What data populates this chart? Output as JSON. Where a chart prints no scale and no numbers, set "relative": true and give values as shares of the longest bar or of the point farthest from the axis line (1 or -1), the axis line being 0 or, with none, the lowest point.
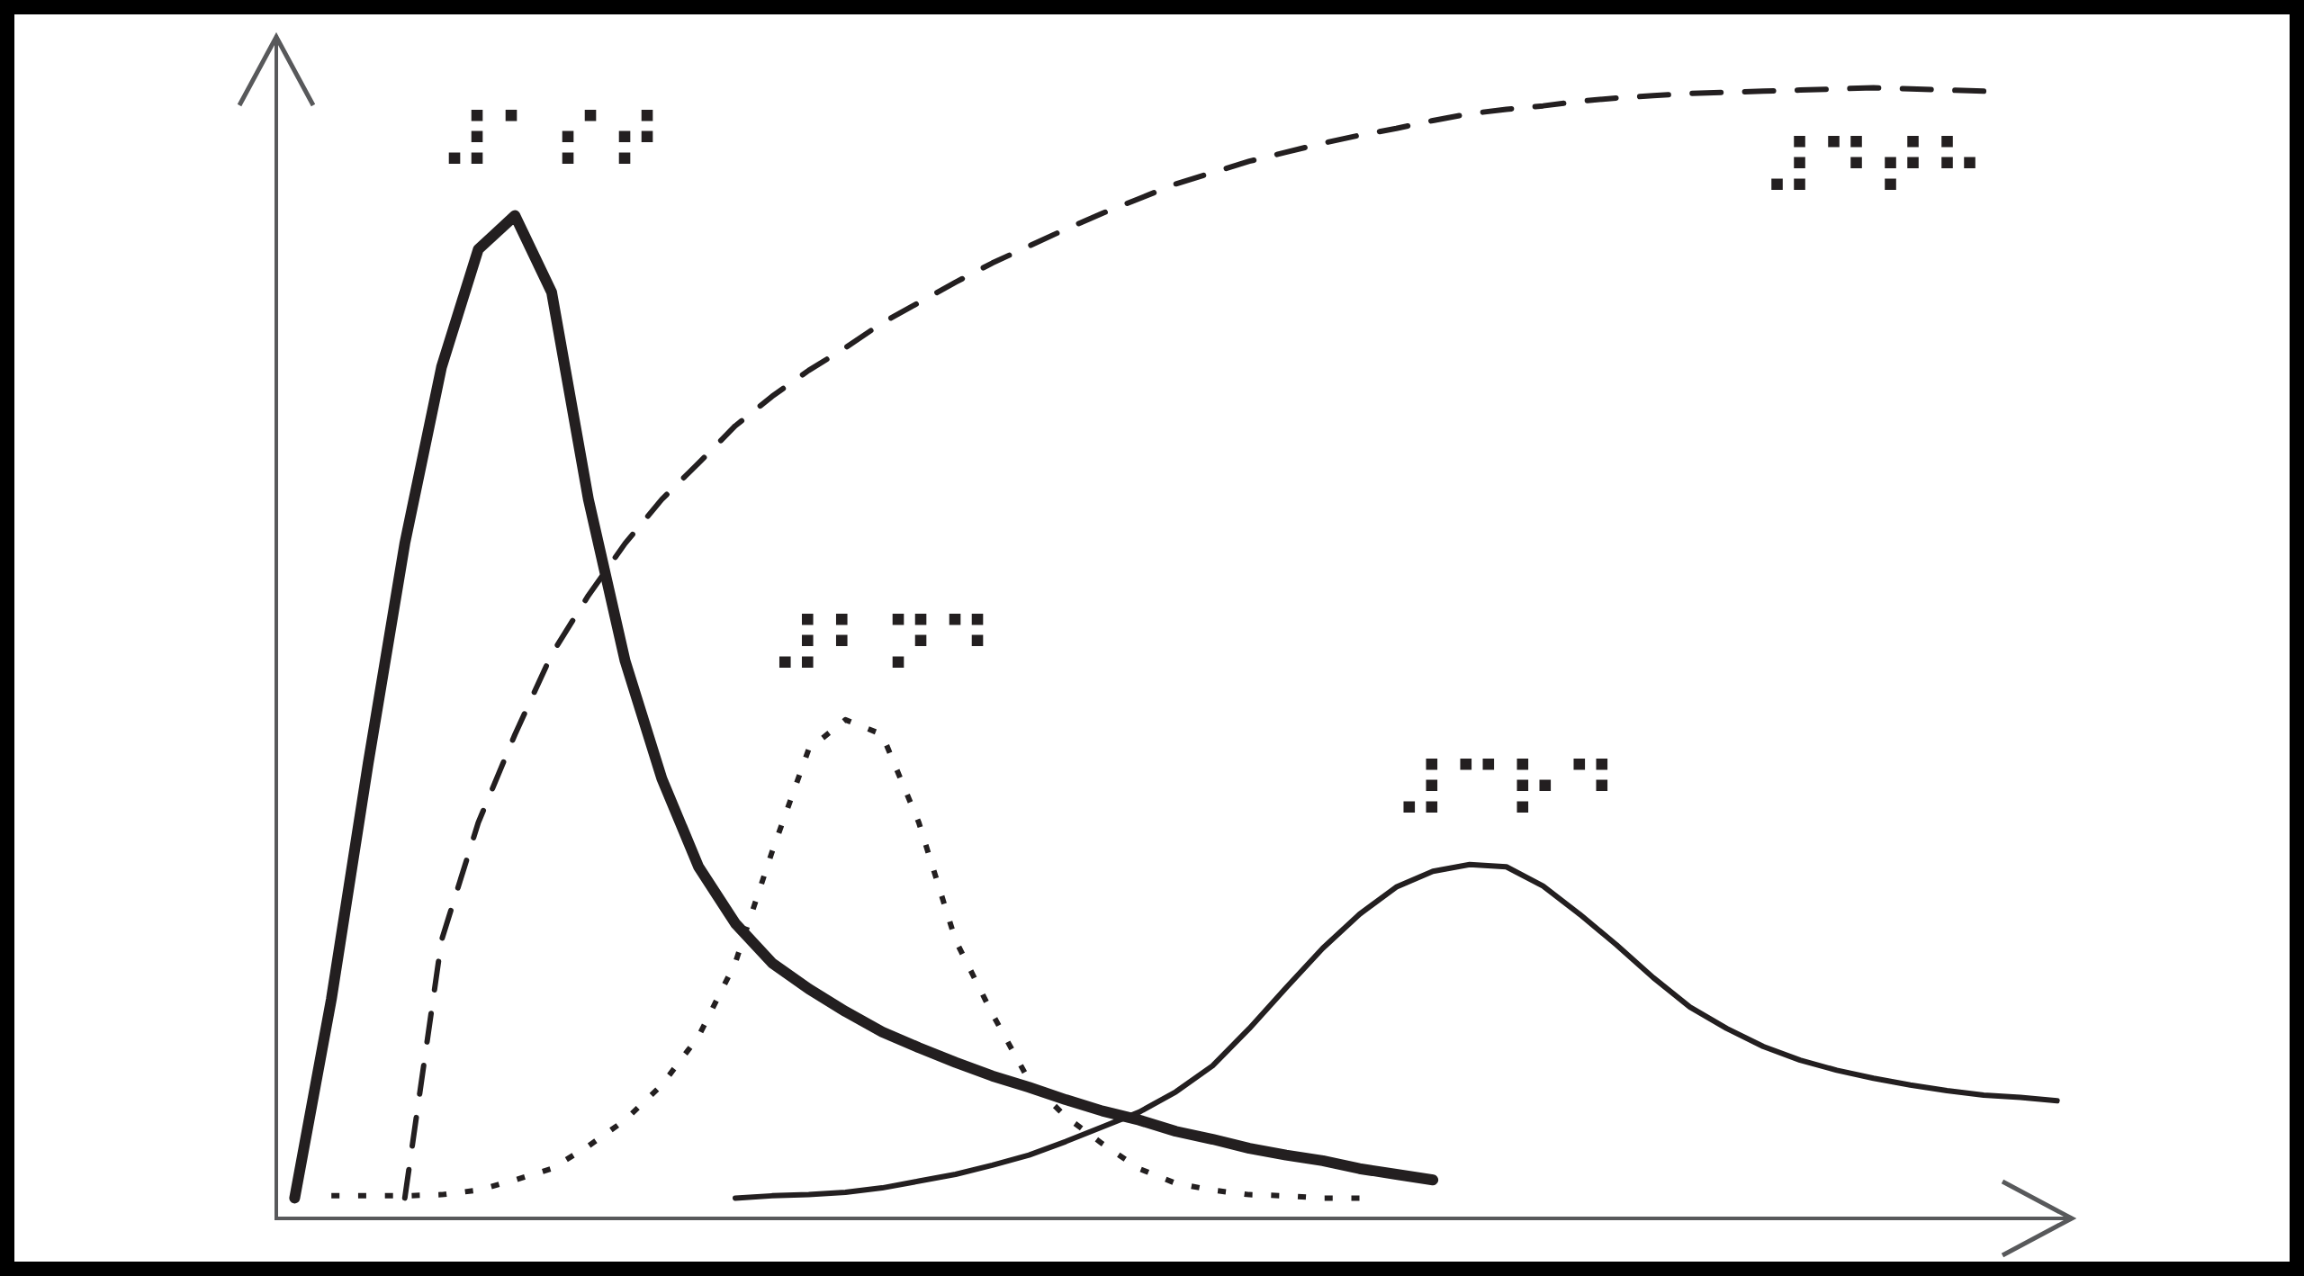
{
  "chart_data": {
    "type": "line",
    "relative": true,
    "legend": false,
    "grid": false,
    "categories": [
      null,
      null,
      null,
      null,
      null,
      null,
      null,
      null,
      null,
      null,
      null,
      null,
      null,
      null,
      null,
      null,
      null,
      null,
      null,
      null,
      null,
      null,
      null,
      null,
      null,
      null,
      null,
      null,
      null,
      null,
      null,
      null,
      null,
      null,
      null,
      null,
      null,
      null,
      null,
      null,
      null,
      null,
      null,
      null,
      null,
      null,
      null,
      null,
      null
    ],
    "series": [
      {
        "name": "⠼⠁⠎⠞",
        "color": "#231f20",
        "line_style": "solid",
        "values": [
          0.018,
          0.194,
          0.402,
          0.597,
          0.753,
          0.857,
          0.887,
          0.819,
          0.636,
          0.493,
          0.389,
          0.311,
          0.261,
          0.226,
          0.203,
          0.183,
          0.165,
          0.151,
          0.138,
          0.126,
          0.116,
          0.105,
          0.095,
          0.087,
          0.077,
          0.07,
          0.062,
          0.056,
          0.051,
          0.044,
          0.039,
          0.034,
          null,
          null,
          null,
          null,
          null,
          null,
          null,
          null,
          null,
          null,
          null,
          null,
          null,
          null,
          null,
          null,
          null
        ]
      },
      {
        "name": "⠼⠃⠝⠙",
        "color": "#231f20",
        "line_style": "dotted",
        "values": [
          null,
          0.02,
          0.02,
          0.02,
          0.021,
          0.025,
          0.034,
          0.044,
          0.064,
          0.087,
          0.118,
          0.161,
          0.226,
          0.324,
          0.415,
          0.441,
          0.428,
          0.35,
          0.246,
          0.181,
          0.122,
          0.09,
          0.066,
          0.044,
          0.031,
          0.025,
          0.021,
          0.02,
          0.018,
          0.018,
          null,
          null,
          null,
          null,
          null,
          null,
          null,
          null,
          null,
          null,
          null,
          null,
          null,
          null,
          null,
          null,
          null,
          null,
          null
        ]
      },
      {
        "name": "⠼⠉⠗⠙",
        "color": "#231f20",
        "line_style": "solid",
        "values": [
          null,
          null,
          null,
          null,
          null,
          null,
          null,
          null,
          null,
          null,
          null,
          null,
          0.018,
          0.02,
          0.021,
          0.023,
          0.027,
          0.033,
          0.039,
          0.047,
          0.056,
          0.068,
          0.081,
          0.094,
          0.112,
          0.135,
          0.168,
          0.204,
          0.239,
          0.269,
          0.293,
          0.307,
          0.313,
          0.311,
          0.294,
          0.269,
          0.242,
          0.213,
          0.187,
          0.168,
          0.152,
          0.14,
          0.131,
          0.124,
          0.118,
          0.113,
          0.109,
          0.107,
          0.104
        ]
      },
      {
        "name": "⠼⠙⠞⠓",
        "color": "#231f20",
        "line_style": "dashed",
        "values": [
          null,
          null,
          null,
          0.018,
          0.246,
          0.35,
          0.428,
          0.499,
          0.551,
          0.597,
          0.636,
          0.668,
          0.701,
          0.727,
          0.75,
          0.77,
          0.792,
          0.81,
          0.828,
          0.845,
          0.86,
          0.875,
          0.889,
          0.902,
          0.915,
          0.925,
          0.935,
          0.943,
          0.951,
          0.958,
          0.964,
          0.971,
          0.977,
          0.981,
          0.984,
          0.988,
          0.991,
          0.993,
          0.995,
          0.996,
          0.997,
          0.998,
          0.999,
          1,
          0.999,
          0.998,
          0.997,
          null,
          null
        ]
      }
    ]
  }
}
